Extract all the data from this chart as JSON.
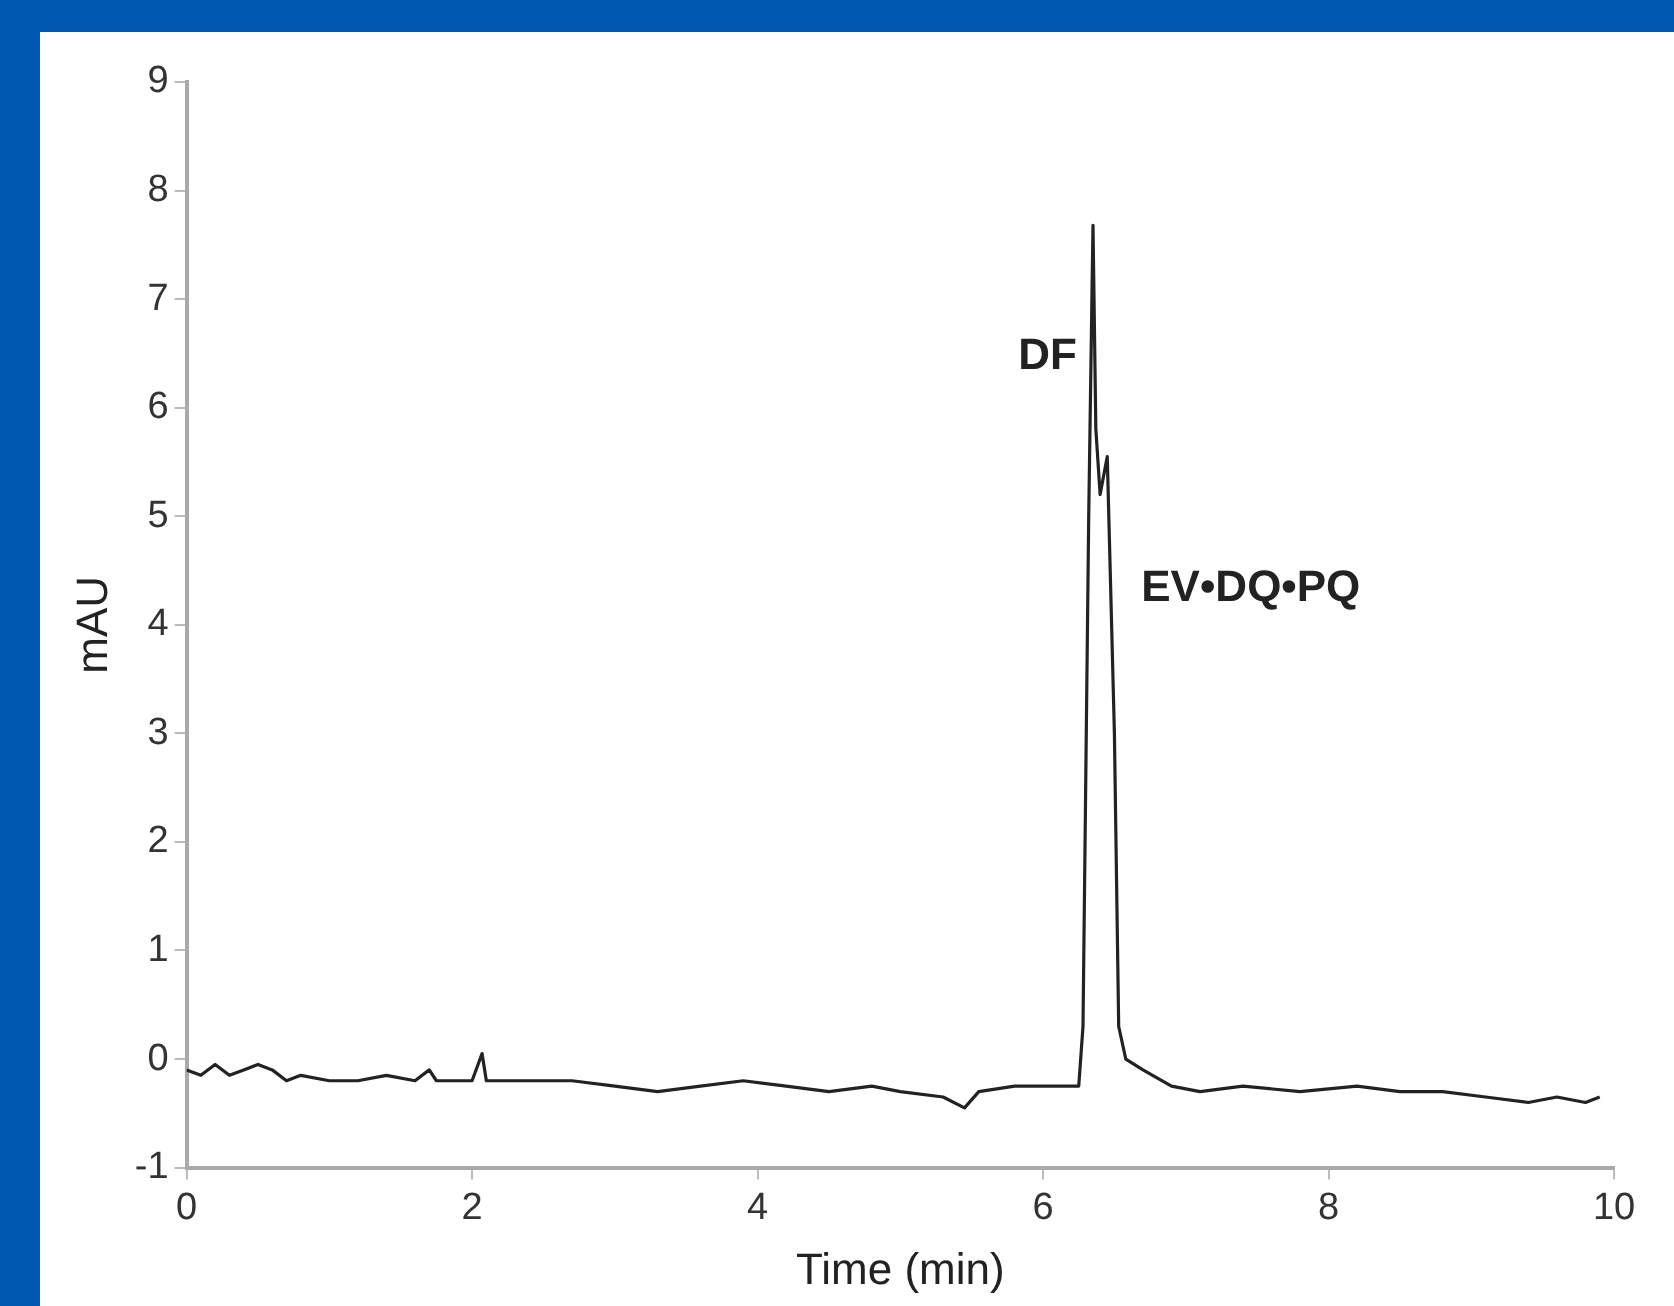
{
  "chart_data": {
    "type": "line",
    "xlabel": "Time (min)",
    "ylabel": "mAU",
    "x": [
      0,
      0.1,
      0.2,
      0.3,
      0.4,
      0.5,
      0.6,
      0.7,
      0.8,
      1.0,
      1.2,
      1.4,
      1.6,
      1.7,
      1.75,
      2.0,
      2.07,
      2.1,
      2.4,
      2.7,
      3.0,
      3.3,
      3.6,
      3.9,
      4.2,
      4.5,
      4.8,
      5.0,
      5.3,
      5.45,
      5.55,
      5.8,
      6.0,
      6.25,
      6.28,
      6.32,
      6.35,
      6.37,
      6.4,
      6.45,
      6.5,
      6.53,
      6.58,
      6.7,
      6.9,
      7.1,
      7.4,
      7.8,
      8.2,
      8.5,
      8.8,
      9.1,
      9.4,
      9.6,
      9.8,
      9.9
    ],
    "series": [
      {
        "color": "#222222",
        "values": [
          -0.1,
          -0.15,
          -0.05,
          -0.15,
          -0.1,
          -0.05,
          -0.1,
          -0.2,
          -0.15,
          -0.2,
          -0.2,
          -0.15,
          -0.2,
          -0.1,
          -0.2,
          -0.2,
          0.05,
          -0.2,
          -0.2,
          -0.2,
          -0.25,
          -0.3,
          -0.25,
          -0.2,
          -0.25,
          -0.3,
          -0.25,
          -0.3,
          -0.35,
          -0.45,
          -0.3,
          -0.25,
          -0.25,
          -0.25,
          0.3,
          5.0,
          7.68,
          5.8,
          5.2,
          5.55,
          3.0,
          0.3,
          0.0,
          -0.1,
          -0.25,
          -0.3,
          -0.25,
          -0.3,
          -0.25,
          -0.3,
          -0.3,
          -0.35,
          -0.4,
          -0.35,
          -0.4,
          -0.35
        ]
      }
    ],
    "xlim": [
      0,
      10
    ],
    "xticks": [
      0,
      2,
      4,
      6,
      8,
      10
    ],
    "ylim": [
      -1,
      9
    ],
    "yticks": [
      -1,
      0,
      1,
      2,
      3,
      4,
      5,
      6,
      7,
      8,
      9
    ],
    "grid": false,
    "legend": false,
    "marker": "none",
    "line_style": "solid",
    "annotations": [
      {
        "text": "DF",
        "x": 6.35,
        "y": 7.68
      },
      {
        "text": "EV•DQ•PQ",
        "x": 6.45,
        "y": 5.55
      }
    ]
  }
}
